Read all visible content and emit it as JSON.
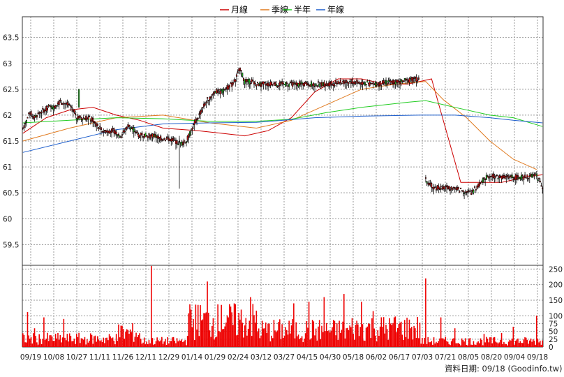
{
  "legend": [
    {
      "label": "月線",
      "color": "#cc0000"
    },
    {
      "label": "季線",
      "color": "#e07a1f"
    },
    {
      "label": "半年",
      "color": "#22cc22"
    },
    {
      "label": "年線",
      "color": "#1f5fcc"
    }
  ],
  "footer": "資料日期: 09/18  (Goodinfo.tw)",
  "chart_data": {
    "type": "candlestick_with_volume",
    "price_axis": {
      "ylim": [
        59.1,
        63.9
      ],
      "ticks": [
        59.5,
        60,
        60.5,
        61,
        61.5,
        62,
        62.5,
        63,
        63.5
      ]
    },
    "volume_axis": {
      "ylim": [
        0,
        262
      ],
      "ticks": [
        0,
        25,
        50,
        75,
        100,
        150,
        200,
        250
      ]
    },
    "x_tick_labels": [
      "09/19",
      "10/08",
      "10/27",
      "11/11",
      "11/26",
      "12/11",
      "12/29",
      "01/14",
      "01/29",
      "02/24",
      "03/12",
      "03/27",
      "04/15",
      "04/30",
      "05/18",
      "06/02",
      "06/17",
      "07/03",
      "07/21",
      "08/05",
      "08/20",
      "09/04",
      "09/18"
    ],
    "grid": true,
    "series": [
      {
        "name": "月線",
        "points": [
          [
            0,
            61.65
          ],
          [
            20,
            61.95
          ],
          [
            40,
            62.1
          ],
          [
            60,
            62.15
          ],
          [
            80,
            62.0
          ],
          [
            100,
            61.9
          ],
          [
            120,
            61.75
          ],
          [
            150,
            61.7
          ],
          [
            170,
            61.65
          ],
          [
            190,
            61.6
          ],
          [
            210,
            61.7
          ],
          [
            230,
            61.95
          ],
          [
            250,
            62.45
          ],
          [
            270,
            62.7
          ],
          [
            290,
            62.7
          ],
          [
            310,
            62.6
          ],
          [
            330,
            62.6
          ],
          [
            350,
            62.7
          ],
          [
            375,
            60.7
          ],
          [
            390,
            60.7
          ],
          [
            410,
            60.7
          ],
          [
            430,
            60.8
          ],
          [
            445,
            60.85
          ]
        ]
      },
      {
        "name": "季線",
        "points": [
          [
            0,
            61.5
          ],
          [
            40,
            61.75
          ],
          [
            80,
            61.95
          ],
          [
            120,
            62.0
          ],
          [
            160,
            61.85
          ],
          [
            200,
            61.75
          ],
          [
            230,
            61.9
          ],
          [
            260,
            62.2
          ],
          [
            290,
            62.5
          ],
          [
            320,
            62.6
          ],
          [
            345,
            62.65
          ],
          [
            360,
            62.3
          ],
          [
            380,
            61.95
          ],
          [
            400,
            61.5
          ],
          [
            420,
            61.15
          ],
          [
            440,
            60.95
          ]
        ]
      },
      {
        "name": "半年",
        "points": [
          [
            0,
            61.85
          ],
          [
            40,
            61.9
          ],
          [
            80,
            61.95
          ],
          [
            120,
            61.93
          ],
          [
            160,
            61.88
          ],
          [
            200,
            61.88
          ],
          [
            230,
            61.92
          ],
          [
            260,
            62.05
          ],
          [
            290,
            62.15
          ],
          [
            330,
            62.25
          ],
          [
            345,
            62.28
          ],
          [
            370,
            62.15
          ],
          [
            400,
            62.0
          ],
          [
            420,
            61.95
          ],
          [
            445,
            61.78
          ]
        ]
      },
      {
        "name": "年線",
        "points": [
          [
            0,
            61.28
          ],
          [
            40,
            61.5
          ],
          [
            80,
            61.72
          ],
          [
            120,
            61.83
          ],
          [
            160,
            61.85
          ],
          [
            200,
            61.86
          ],
          [
            250,
            61.95
          ],
          [
            290,
            61.98
          ],
          [
            340,
            62.0
          ],
          [
            370,
            62.0
          ],
          [
            400,
            61.95
          ],
          [
            420,
            61.9
          ],
          [
            445,
            61.85
          ]
        ]
      }
    ],
    "candle_segments": [
      {
        "from": 0,
        "to": 45,
        "points": [
          [
            0,
            61.75
          ],
          [
            3,
            61.9
          ],
          [
            6,
            62.05
          ],
          [
            10,
            61.95
          ],
          [
            14,
            62.05
          ],
          [
            18,
            62.1
          ],
          [
            22,
            62.15
          ],
          [
            26,
            62.15
          ],
          [
            30,
            62.25
          ],
          [
            34,
            62.25
          ],
          [
            38,
            62.2
          ],
          [
            42,
            62.15
          ],
          [
            45,
            62.05
          ]
        ]
      },
      {
        "from": 45,
        "to": 100,
        "points": [
          [
            45,
            61.95
          ],
          [
            50,
            61.95
          ],
          [
            56,
            61.95
          ],
          [
            60,
            61.9
          ],
          [
            64,
            61.8
          ],
          [
            68,
            61.7
          ],
          [
            72,
            61.7
          ],
          [
            78,
            61.7
          ],
          [
            84,
            61.6
          ],
          [
            90,
            61.8
          ],
          [
            96,
            61.7
          ],
          [
            100,
            61.6
          ]
        ]
      },
      {
        "from": 100,
        "to": 140,
        "points": [
          [
            100,
            61.65
          ],
          [
            106,
            61.6
          ],
          [
            112,
            61.6
          ],
          [
            118,
            61.55
          ],
          [
            124,
            61.55
          ],
          [
            130,
            61.5
          ],
          [
            136,
            61.45
          ],
          [
            140,
            61.5
          ]
        ]
      },
      {
        "from": 140,
        "to": 200,
        "points": [
          [
            140,
            61.5
          ],
          [
            146,
            61.8
          ],
          [
            152,
            62.05
          ],
          [
            158,
            62.3
          ],
          [
            164,
            62.45
          ],
          [
            170,
            62.45
          ],
          [
            176,
            62.55
          ],
          [
            180,
            62.6
          ],
          [
            186,
            62.9
          ],
          [
            190,
            62.65
          ],
          [
            196,
            62.65
          ],
          [
            200,
            62.6
          ]
        ]
      },
      {
        "from": 200,
        "to": 340,
        "points": [
          [
            200,
            62.6
          ],
          [
            220,
            62.6
          ],
          [
            240,
            62.6
          ],
          [
            260,
            62.6
          ],
          [
            280,
            62.65
          ],
          [
            300,
            62.6
          ],
          [
            320,
            62.65
          ],
          [
            340,
            62.7
          ]
        ]
      },
      {
        "from": 340,
        "to": 445,
        "points": [
          [
            345,
            60.75
          ],
          [
            352,
            60.6
          ],
          [
            360,
            60.6
          ],
          [
            368,
            60.6
          ],
          [
            376,
            60.55
          ],
          [
            384,
            60.5
          ],
          [
            392,
            60.7
          ],
          [
            400,
            60.85
          ],
          [
            410,
            60.8
          ],
          [
            420,
            60.8
          ],
          [
            430,
            60.8
          ],
          [
            440,
            60.85
          ],
          [
            445,
            60.6
          ]
        ]
      }
    ],
    "volume_profile": [
      {
        "from": 0,
        "to": 80,
        "level": 35
      },
      {
        "from": 80,
        "to": 100,
        "level": 60
      },
      {
        "from": 100,
        "to": 140,
        "level": 25
      },
      {
        "from": 140,
        "to": 200,
        "level": 110
      },
      {
        "from": 200,
        "to": 280,
        "level": 70
      },
      {
        "from": 280,
        "to": 340,
        "level": 80
      },
      {
        "from": 340,
        "to": 445,
        "level": 25
      }
    ],
    "volume_spikes": [
      [
        4,
        112
      ],
      [
        10,
        60
      ],
      [
        18,
        95
      ],
      [
        35,
        90
      ],
      [
        55,
        25
      ],
      [
        80,
        42
      ],
      [
        110,
        260
      ],
      [
        150,
        135
      ],
      [
        158,
        210
      ],
      [
        170,
        135
      ],
      [
        176,
        95
      ],
      [
        195,
        160
      ],
      [
        232,
        140
      ],
      [
        245,
        145
      ],
      [
        258,
        160
      ],
      [
        275,
        170
      ],
      [
        290,
        145
      ],
      [
        300,
        115
      ],
      [
        318,
        95
      ],
      [
        332,
        60
      ],
      [
        345,
        220
      ],
      [
        358,
        95
      ],
      [
        370,
        60
      ],
      [
        395,
        42
      ],
      [
        410,
        45
      ],
      [
        420,
        65
      ],
      [
        440,
        100
      ]
    ]
  }
}
